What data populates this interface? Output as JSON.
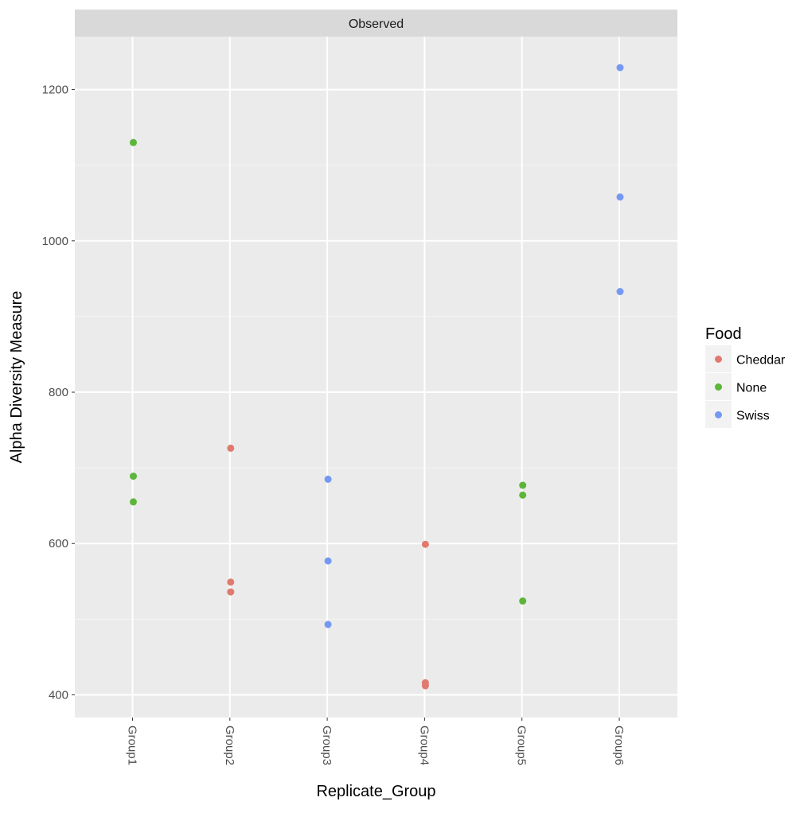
{
  "chart_data": {
    "type": "scatter",
    "facet_label": "Observed",
    "xlabel": "Replicate_Group",
    "ylabel": "Alpha Diversity Measure",
    "categories": [
      "Group1",
      "Group2",
      "Group3",
      "Group4",
      "Group5",
      "Group6"
    ],
    "ylim": [
      370,
      1270
    ],
    "yticks": [
      400,
      600,
      800,
      1000,
      1200
    ],
    "grid": true,
    "legend": {
      "title": "Food",
      "position": "right"
    },
    "series": [
      {
        "name": "Cheddar",
        "color": "#E07A6E",
        "points": [
          {
            "x": "Group2",
            "y": 726
          },
          {
            "x": "Group2",
            "y": 549
          },
          {
            "x": "Group2",
            "y": 536
          },
          {
            "x": "Group4",
            "y": 599
          },
          {
            "x": "Group4",
            "y": 416
          },
          {
            "x": "Group4",
            "y": 412
          }
        ]
      },
      {
        "name": "None",
        "color": "#5DB53A",
        "points": [
          {
            "x": "Group1",
            "y": 1130
          },
          {
            "x": "Group1",
            "y": 689
          },
          {
            "x": "Group1",
            "y": 655
          },
          {
            "x": "Group5",
            "y": 677
          },
          {
            "x": "Group5",
            "y": 664
          },
          {
            "x": "Group5",
            "y": 524
          }
        ]
      },
      {
        "name": "Swiss",
        "color": "#7599F2",
        "points": [
          {
            "x": "Group3",
            "y": 685
          },
          {
            "x": "Group3",
            "y": 577
          },
          {
            "x": "Group3",
            "y": 493
          },
          {
            "x": "Group6",
            "y": 1229
          },
          {
            "x": "Group6",
            "y": 1058
          },
          {
            "x": "Group6",
            "y": 933
          }
        ]
      }
    ]
  }
}
